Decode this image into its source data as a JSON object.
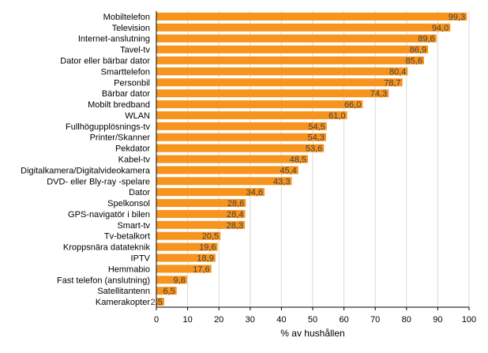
{
  "chart_data": {
    "type": "bar",
    "orientation": "horizontal",
    "title": "",
    "xlabel": "% av hushållen",
    "ylabel": "",
    "xlim": [
      0,
      100
    ],
    "xticks": [
      0,
      10,
      20,
      30,
      40,
      50,
      60,
      70,
      80,
      90,
      100
    ],
    "grid": true,
    "bar_color": "#F7941D",
    "categories": [
      "Mobiltelefon",
      "Television",
      "Internet-anslutning",
      "Tavel-tv",
      "Dator eller bärbar dator",
      "Smarttelefon",
      "Personbil",
      "Bärbar dator",
      "Mobilt bredband",
      "WLAN",
      "Fullhögupplösnings-tv",
      "Printer/Skanner",
      "Pekdator",
      "Kabel-tv",
      "Digitalkamera/Digitalvideokamera",
      "DVD- eller Bly-ray -spelare",
      "Dator",
      "Spelkonsol",
      "GPS-navigatör i bilen",
      "Smart-tv",
      "Tv-betalkort",
      "Kroppsnära datateknik",
      "IPTV",
      "Hemmabio",
      "Fast telefon (anslutning)",
      "Satellitantenn",
      "Kamerakopter"
    ],
    "values": [
      99.3,
      94.0,
      89.6,
      86.9,
      85.6,
      80.4,
      78.7,
      74.3,
      66.0,
      61.0,
      54.5,
      54.3,
      53.6,
      48.5,
      45.4,
      43.3,
      34.6,
      28.6,
      28.4,
      28.3,
      20.5,
      19.6,
      18.9,
      17.6,
      9.8,
      6.5,
      2.5
    ],
    "value_labels": [
      "99,3",
      "94,0",
      "89,6",
      "86,9",
      "85,6",
      "80,4",
      "78,7",
      "74,3",
      "66,0",
      "61,0",
      "54,5",
      "54,3",
      "53,6",
      "48,5",
      "45,4",
      "43,3",
      "34,6",
      "28,6",
      "28,4",
      "28,3",
      "20,5",
      "19,6",
      "18,9",
      "17,6",
      "9,8",
      "6,5",
      "2,5"
    ]
  }
}
